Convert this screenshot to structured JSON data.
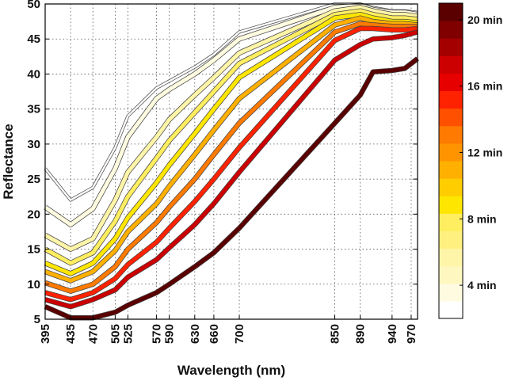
{
  "chart_data": {
    "type": "line",
    "xlabel": "Wavelength (nm)",
    "ylabel": "Reflectance",
    "xlim": [
      395,
      980
    ],
    "ylim": [
      5,
      50
    ],
    "grid": true,
    "x_ticks": [
      395,
      435,
      470,
      505,
      525,
      570,
      590,
      630,
      660,
      700,
      850,
      890,
      940,
      970
    ],
    "y_ticks": [
      5,
      10,
      15,
      20,
      25,
      30,
      35,
      40,
      45,
      50
    ],
    "x": [
      395,
      435,
      470,
      505,
      525,
      570,
      590,
      630,
      660,
      700,
      850,
      890,
      910,
      940,
      960,
      980
    ],
    "series": [
      {
        "minutes": 2,
        "color": "#ffffff",
        "values": [
          26.5,
          22.0,
          23.8,
          29.5,
          34.0,
          38.0,
          39.0,
          41.0,
          42.8,
          46.0,
          50.0,
          50.0,
          49.5,
          49.0,
          49.0,
          48.8
        ]
      },
      {
        "minutes": 4,
        "color": "#fffbe0",
        "values": [
          21.0,
          18.5,
          20.8,
          26.5,
          31.0,
          36.5,
          37.8,
          40.0,
          42.0,
          45.0,
          49.5,
          49.8,
          49.2,
          48.8,
          48.8,
          48.5
        ]
      },
      {
        "minutes": 6,
        "color": "#fff5a8",
        "values": [
          17.0,
          15.0,
          16.5,
          22.0,
          26.0,
          31.0,
          33.5,
          37.0,
          39.5,
          43.0,
          49.0,
          49.5,
          49.0,
          48.5,
          48.5,
          48.2
        ]
      },
      {
        "minutes": 8,
        "color": "#ffee60",
        "values": [
          15.0,
          13.0,
          14.5,
          19.0,
          22.5,
          28.0,
          30.5,
          34.5,
          37.5,
          41.5,
          48.5,
          49.0,
          48.5,
          48.0,
          48.0,
          47.8
        ]
      },
      {
        "minutes": 10,
        "color": "#ffe600",
        "values": [
          13.0,
          11.5,
          13.0,
          16.5,
          19.5,
          24.5,
          27.0,
          31.5,
          35.0,
          39.5,
          48.0,
          48.5,
          48.0,
          47.5,
          47.5,
          47.3
        ]
      },
      {
        "minutes": 12,
        "color": "#ffb000",
        "values": [
          11.8,
          10.5,
          11.8,
          14.8,
          17.5,
          21.5,
          24.0,
          28.5,
          32.0,
          36.5,
          47.0,
          48.0,
          47.5,
          47.2,
          47.2,
          47.0
        ]
      },
      {
        "minutes": 14,
        "color": "#ff7a00",
        "values": [
          10.2,
          9.0,
          10.0,
          12.5,
          15.0,
          18.8,
          21.0,
          25.0,
          28.5,
          33.0,
          46.0,
          47.2,
          47.0,
          46.8,
          46.8,
          46.8
        ]
      },
      {
        "minutes": 16,
        "color": "#ff2200",
        "values": [
          8.8,
          7.8,
          8.8,
          10.8,
          12.8,
          16.0,
          18.0,
          21.8,
          25.0,
          29.5,
          44.8,
          46.5,
          46.5,
          46.3,
          46.3,
          46.5
        ]
      },
      {
        "minutes": 18,
        "color": "#cc0000",
        "values": [
          7.8,
          6.8,
          7.8,
          9.2,
          11.0,
          13.5,
          15.2,
          18.5,
          21.5,
          26.0,
          42.0,
          44.2,
          45.0,
          45.2,
          45.5,
          46.0
        ]
      },
      {
        "minutes": 20,
        "color": "#5a0000",
        "values": [
          6.8,
          5.2,
          5.2,
          6.0,
          7.0,
          8.8,
          10.0,
          12.5,
          14.5,
          18.0,
          33.0,
          37.0,
          40.3,
          40.5,
          40.8,
          42.2
        ]
      }
    ],
    "colorbar": {
      "colors": [
        "#ffffff",
        "#fffbe0",
        "#fff7c0",
        "#fff5a8",
        "#fff080",
        "#ffee60",
        "#ffe600",
        "#ffcd00",
        "#ffb000",
        "#ff9400",
        "#ff7a00",
        "#ff5000",
        "#ff2200",
        "#e60000",
        "#cc0000",
        "#a50000",
        "#800000",
        "#5a0000"
      ],
      "labels": [
        "4 min",
        "8 min",
        "12 min",
        "16 min",
        "20 min"
      ],
      "label_minutes": [
        4,
        8,
        12,
        16,
        20
      ],
      "min_minutes": 2,
      "max_minutes": 21
    }
  }
}
